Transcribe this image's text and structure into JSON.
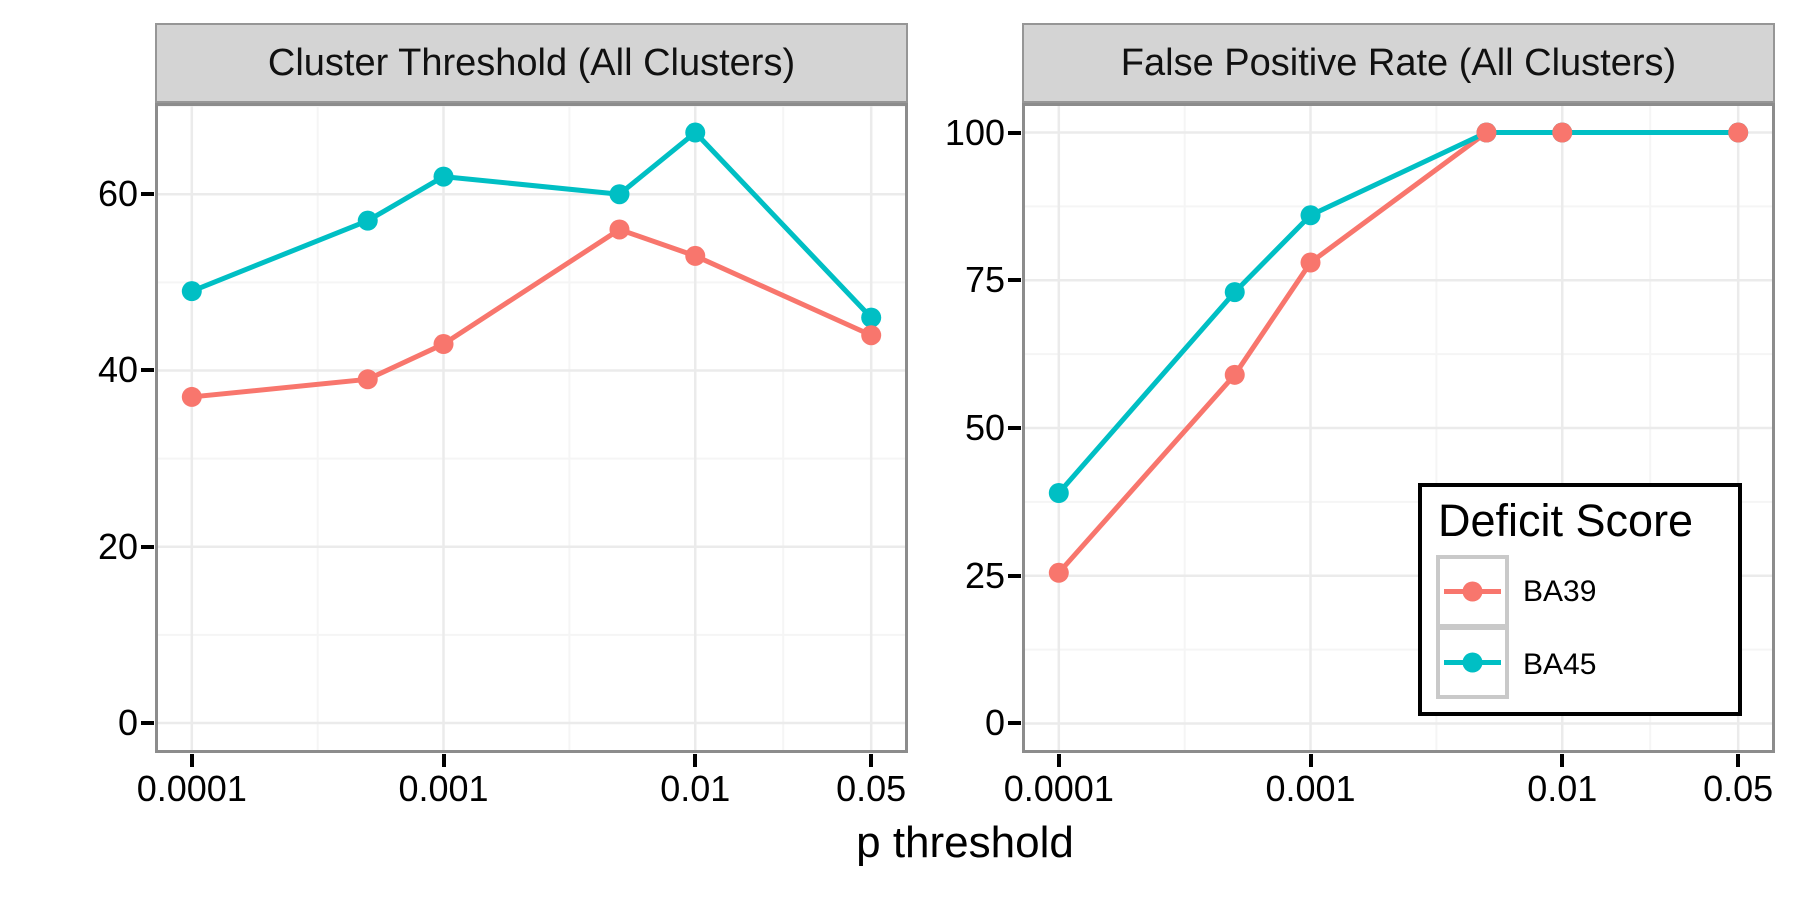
{
  "figure": {
    "x_axis_title": "p threshold"
  },
  "colors": {
    "BA39": "#F8766D",
    "BA45": "#00BFC4",
    "strip_bg": "#D4D4D4",
    "strip_border": "#969696",
    "panel_border": "#8C8C8C",
    "grid_major": "#EBEBEB",
    "grid_minor": "#F5F5F5",
    "tick": "#000000",
    "text": "#000000"
  },
  "legend": {
    "title": "Deficit Score",
    "entries": [
      {
        "label": "BA39",
        "series": "BA39"
      },
      {
        "label": "BA45",
        "series": "BA45"
      }
    ]
  },
  "chart_data": [
    {
      "type": "line",
      "title": "Cluster Threshold (All Clusters)",
      "x_scale": "log10",
      "xlabel": "p threshold",
      "x": [
        0.0001,
        0.0005,
        0.001,
        0.005,
        0.01,
        0.05
      ],
      "x_ticks": [
        0.0001,
        0.001,
        0.01,
        0.05
      ],
      "x_tick_labels": [
        "0.0001",
        "0.001",
        "0.01",
        "0.05"
      ],
      "y_ticks": [
        0,
        20,
        40,
        60
      ],
      "y_tick_labels": [
        "0",
        "20",
        "40",
        "60"
      ],
      "y_minor": [
        10,
        30,
        50,
        70
      ],
      "ylim": [
        -3.4,
        70.35
      ],
      "grid": true,
      "series": [
        {
          "name": "BA39",
          "values": [
            37,
            39,
            43,
            56,
            53,
            44
          ]
        },
        {
          "name": "BA45",
          "values": [
            49,
            57,
            62,
            60,
            67,
            46
          ]
        }
      ]
    },
    {
      "type": "line",
      "title": "False Positive Rate (All Clusters)",
      "x_scale": "log10",
      "xlabel": "p threshold",
      "x": [
        0.0001,
        0.0005,
        0.001,
        0.005,
        0.01,
        0.05
      ],
      "x_ticks": [
        0.0001,
        0.001,
        0.01,
        0.05
      ],
      "x_tick_labels": [
        "0.0001",
        "0.001",
        "0.01",
        "0.05"
      ],
      "y_ticks": [
        0,
        25,
        50,
        75,
        100
      ],
      "y_tick_labels": [
        "0",
        "25",
        "50",
        "75",
        "100"
      ],
      "y_minor": [
        12.5,
        37.5,
        62.5,
        87.5
      ],
      "ylim": [
        -5,
        105
      ],
      "grid": true,
      "legend_position": "inside-bottom-right",
      "series": [
        {
          "name": "BA39",
          "values": [
            25.5,
            59,
            78,
            100,
            100,
            100
          ]
        },
        {
          "name": "BA45",
          "values": [
            39,
            73,
            86,
            100,
            100,
            100
          ]
        }
      ]
    }
  ]
}
